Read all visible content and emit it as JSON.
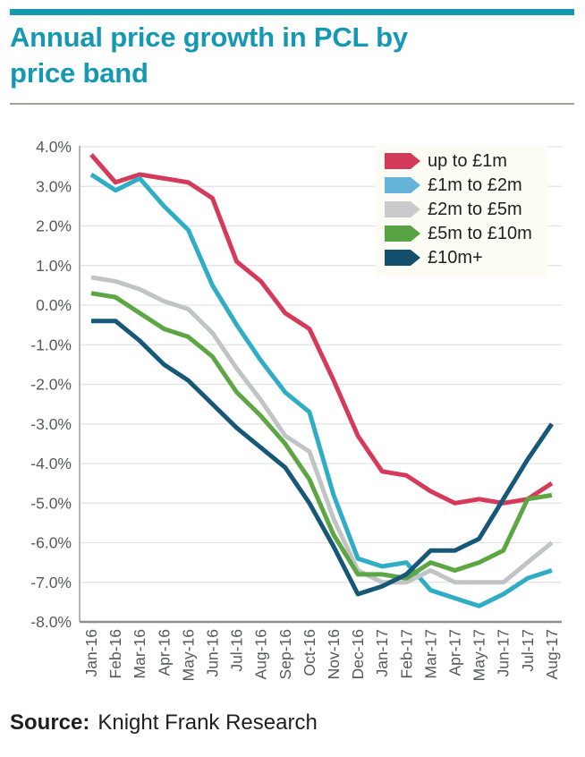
{
  "page": {
    "title": "Annual price growth in PCL by price band",
    "source_label": "Source:",
    "source_text": "Knight Frank Research",
    "accent_color": "#1598b2"
  },
  "chart_data": {
    "type": "line",
    "title": "Annual price growth in PCL by price band",
    "xlabel": "",
    "ylabel": "",
    "unit": "%",
    "ylim": [
      -8.0,
      4.0
    ],
    "grid": "horizontal",
    "legend_position": "top-right-inside",
    "y_ticks": [
      "4.0%",
      "3.0%",
      "2.0%",
      "1.0%",
      "0.0%",
      "-1.0%",
      "-2.0%",
      "-3.0%",
      "-4.0%",
      "-5.0%",
      "-6.0%",
      "-7.0%",
      "-8.0%"
    ],
    "x": [
      "Jan-16",
      "Feb-16",
      "Mar-16",
      "Apr-16",
      "May-16",
      "Jun-16",
      "Jul-16",
      "Aug-16",
      "Sep-16",
      "Oct-16",
      "Nov-16",
      "Dec-16",
      "Jan-17",
      "Feb-17",
      "Mar-17",
      "Apr-17",
      "May-17",
      "Jun-17",
      "Jul-17",
      "Aug-17"
    ],
    "series": [
      {
        "name": "up to £1m",
        "color": "#d63a5a",
        "legend_color": "#d23a59",
        "values": [
          3.8,
          3.1,
          3.3,
          3.2,
          3.1,
          2.7,
          1.1,
          0.6,
          -0.2,
          -0.6,
          -1.9,
          -3.3,
          -4.2,
          -4.3,
          -4.7,
          -5.0,
          -4.9,
          -5.0,
          -4.9,
          -4.5
        ]
      },
      {
        "name": "£1m to £2m",
        "color": "#2fadc5",
        "legend_color": "#63b4d8",
        "values": [
          3.3,
          2.9,
          3.2,
          2.5,
          1.9,
          0.5,
          -0.5,
          -1.4,
          -2.2,
          -2.7,
          -4.8,
          -6.4,
          -6.6,
          -6.5,
          -7.2,
          -7.4,
          -7.6,
          -7.3,
          -6.9,
          -6.7
        ]
      },
      {
        "name": "£2m to £5m",
        "color": "#c2c3c5",
        "legend_color": "#c9cacb",
        "values": [
          0.7,
          0.6,
          0.4,
          0.1,
          -0.1,
          -0.7,
          -1.6,
          -2.4,
          -3.3,
          -3.7,
          -5.4,
          -6.7,
          -7.0,
          -7.0,
          -6.7,
          -7.0,
          -7.0,
          -7.0,
          -6.5,
          -6.0
        ]
      },
      {
        "name": "£5m to £10m",
        "color": "#5ca644",
        "legend_color": "#58a343",
        "values": [
          0.3,
          0.2,
          -0.2,
          -0.6,
          -0.8,
          -1.3,
          -2.2,
          -2.8,
          -3.5,
          -4.4,
          -5.8,
          -6.8,
          -6.8,
          -6.9,
          -6.5,
          -6.7,
          -6.5,
          -6.2,
          -4.9,
          -4.8
        ]
      },
      {
        "name": "£10m+",
        "color": "#175878",
        "legend_color": "#14506e",
        "values": [
          -0.4,
          -0.4,
          -0.9,
          -1.5,
          -1.9,
          -2.5,
          -3.1,
          -3.6,
          -4.1,
          -5.0,
          -6.1,
          -7.3,
          -7.1,
          -6.8,
          -6.2,
          -6.2,
          -5.9,
          -4.9,
          -3.9,
          -3.0
        ]
      }
    ]
  }
}
